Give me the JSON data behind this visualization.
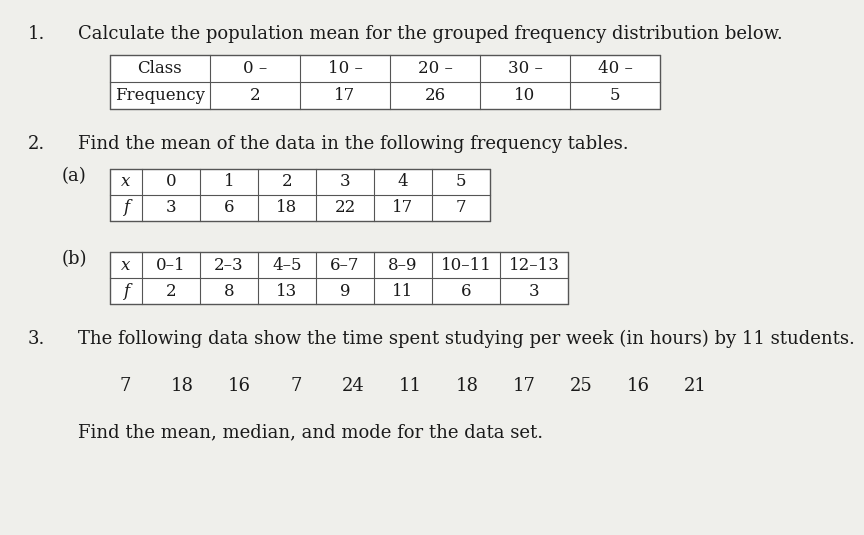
{
  "bg_color": "#efefeb",
  "text_color": "#1a1a1a",
  "q1_number": "1.",
  "q1_text": "Calculate the population mean for the grouped frequency distribution below.",
  "table1": {
    "headers": [
      "Class",
      "0 –",
      "10 –",
      "20 –",
      "30 –",
      "40 –"
    ],
    "row1_label": "Frequency",
    "row1_values": [
      "2",
      "17",
      "26",
      "10",
      "5"
    ]
  },
  "q2_number": "2.",
  "q2_text": "Find the mean of the data in the following frequency tables.",
  "q2a_label": "(a)",
  "table2a": {
    "row1_label": "x",
    "row1_values": [
      "0",
      "1",
      "2",
      "3",
      "4",
      "5"
    ],
    "row2_label": "f",
    "row2_values": [
      "3",
      "6",
      "18",
      "22",
      "17",
      "7"
    ]
  },
  "q2b_label": "(b)",
  "table2b": {
    "row1_label": "x",
    "row1_values": [
      "0–1",
      "2–3",
      "4–5",
      "6–7",
      "8–9",
      "10–11",
      "12–13"
    ],
    "row2_label": "f",
    "row2_values": [
      "2",
      "8",
      "13",
      "9",
      "11",
      "6",
      "3"
    ]
  },
  "q3_number": "3.",
  "q3_text": "The following data show the time spent studying per week (in hours) by 11 students.",
  "q3_data": [
    "7",
    "18",
    "16",
    "7",
    "24",
    "11",
    "18",
    "17",
    "25",
    "16",
    "21"
  ],
  "q3_footer": "Find the mean, median, and mode for the data set.",
  "font_size_body": 13,
  "font_size_table": 12,
  "line_color": "#555555"
}
